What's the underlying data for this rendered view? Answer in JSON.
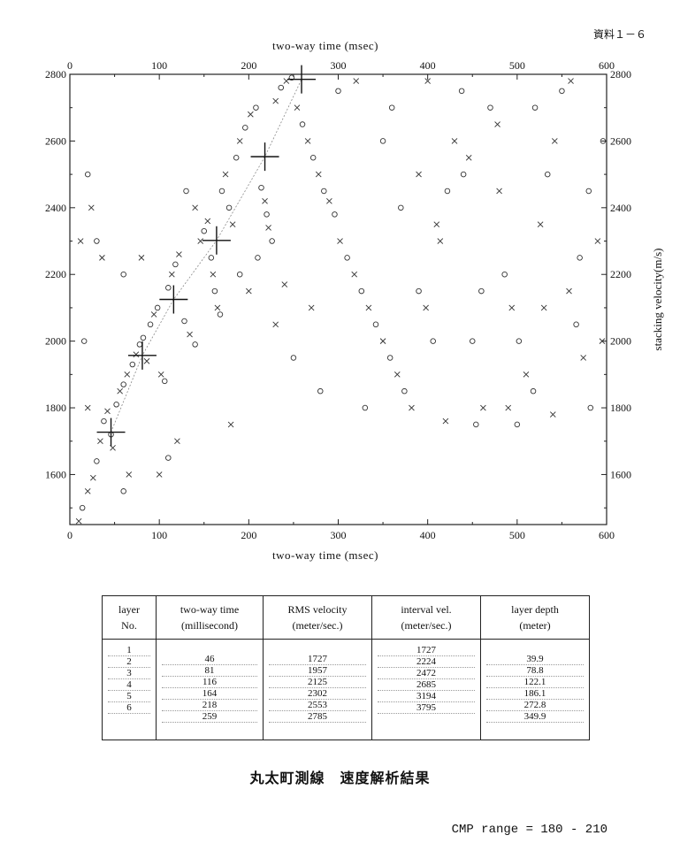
{
  "doc_label": "資料１－６",
  "caption": "丸太町測線　速度解析結果",
  "cmp_range": "CMP range = 180 - 210",
  "chart_data": {
    "type": "scatter",
    "xlabel_top": "two-way time (msec)",
    "xlabel_bottom": "two-way time (msec)",
    "ylabel": "stacking velocity(m/s)",
    "xlim": [
      0,
      600
    ],
    "ylim": [
      1450,
      2800
    ],
    "x_ticks": [
      0,
      100,
      200,
      300,
      400,
      500,
      600
    ],
    "y_ticks": [
      1600,
      1800,
      2000,
      2200,
      2400,
      2600,
      2800
    ],
    "picks": [
      {
        "x": 46,
        "y": 1727
      },
      {
        "x": 81,
        "y": 1957
      },
      {
        "x": 116,
        "y": 2125
      },
      {
        "x": 164,
        "y": 2302
      },
      {
        "x": 218,
        "y": 2553
      },
      {
        "x": 259,
        "y": 2785
      }
    ],
    "semblance_points": [
      {
        "x": 10,
        "y": 1460,
        "m": "x"
      },
      {
        "x": 14,
        "y": 1500,
        "m": "o"
      },
      {
        "x": 20,
        "y": 1550,
        "m": "x"
      },
      {
        "x": 26,
        "y": 1590,
        "m": "x"
      },
      {
        "x": 30,
        "y": 1640,
        "m": "o"
      },
      {
        "x": 34,
        "y": 1700,
        "m": "x"
      },
      {
        "x": 38,
        "y": 1760,
        "m": "o"
      },
      {
        "x": 42,
        "y": 1790,
        "m": "x"
      },
      {
        "x": 46,
        "y": 1720,
        "m": "o"
      },
      {
        "x": 48,
        "y": 1680,
        "m": "x"
      },
      {
        "x": 52,
        "y": 1810,
        "m": "o"
      },
      {
        "x": 56,
        "y": 1850,
        "m": "x"
      },
      {
        "x": 60,
        "y": 1870,
        "m": "o"
      },
      {
        "x": 64,
        "y": 1900,
        "m": "x"
      },
      {
        "x": 70,
        "y": 1930,
        "m": "o"
      },
      {
        "x": 74,
        "y": 1960,
        "m": "x"
      },
      {
        "x": 78,
        "y": 1990,
        "m": "o"
      },
      {
        "x": 82,
        "y": 2010,
        "m": "o"
      },
      {
        "x": 86,
        "y": 1940,
        "m": "x"
      },
      {
        "x": 90,
        "y": 2050,
        "m": "o"
      },
      {
        "x": 94,
        "y": 2080,
        "m": "x"
      },
      {
        "x": 98,
        "y": 2100,
        "m": "o"
      },
      {
        "x": 102,
        "y": 1900,
        "m": "x"
      },
      {
        "x": 106,
        "y": 1880,
        "m": "o"
      },
      {
        "x": 110,
        "y": 2160,
        "m": "o"
      },
      {
        "x": 114,
        "y": 2200,
        "m": "x"
      },
      {
        "x": 118,
        "y": 2230,
        "m": "o"
      },
      {
        "x": 122,
        "y": 2260,
        "m": "x"
      },
      {
        "x": 128,
        "y": 2060,
        "m": "o"
      },
      {
        "x": 134,
        "y": 2020,
        "m": "x"
      },
      {
        "x": 140,
        "y": 1990,
        "m": "o"
      },
      {
        "x": 146,
        "y": 2300,
        "m": "x"
      },
      {
        "x": 150,
        "y": 2330,
        "m": "o"
      },
      {
        "x": 154,
        "y": 2360,
        "m": "x"
      },
      {
        "x": 158,
        "y": 2250,
        "m": "o"
      },
      {
        "x": 160,
        "y": 2200,
        "m": "x"
      },
      {
        "x": 162,
        "y": 2150,
        "m": "o"
      },
      {
        "x": 165,
        "y": 2100,
        "m": "x"
      },
      {
        "x": 168,
        "y": 2080,
        "m": "o"
      },
      {
        "x": 170,
        "y": 2450,
        "m": "o"
      },
      {
        "x": 174,
        "y": 2500,
        "m": "x"
      },
      {
        "x": 178,
        "y": 2400,
        "m": "o"
      },
      {
        "x": 182,
        "y": 2350,
        "m": "x"
      },
      {
        "x": 186,
        "y": 2550,
        "m": "o"
      },
      {
        "x": 190,
        "y": 2600,
        "m": "x"
      },
      {
        "x": 196,
        "y": 2640,
        "m": "o"
      },
      {
        "x": 202,
        "y": 2680,
        "m": "x"
      },
      {
        "x": 208,
        "y": 2700,
        "m": "o"
      },
      {
        "x": 214,
        "y": 2460,
        "m": "o"
      },
      {
        "x": 218,
        "y": 2420,
        "m": "x"
      },
      {
        "x": 220,
        "y": 2380,
        "m": "o"
      },
      {
        "x": 222,
        "y": 2340,
        "m": "x"
      },
      {
        "x": 226,
        "y": 2300,
        "m": "o"
      },
      {
        "x": 230,
        "y": 2720,
        "m": "x"
      },
      {
        "x": 236,
        "y": 2760,
        "m": "o"
      },
      {
        "x": 242,
        "y": 2780,
        "m": "x"
      },
      {
        "x": 248,
        "y": 2790,
        "m": "o"
      },
      {
        "x": 254,
        "y": 2700,
        "m": "x"
      },
      {
        "x": 260,
        "y": 2650,
        "m": "o"
      },
      {
        "x": 266,
        "y": 2600,
        "m": "x"
      },
      {
        "x": 272,
        "y": 2550,
        "m": "o"
      },
      {
        "x": 278,
        "y": 2500,
        "m": "x"
      },
      {
        "x": 284,
        "y": 2450,
        "m": "o"
      },
      {
        "x": 290,
        "y": 2420,
        "m": "x"
      },
      {
        "x": 296,
        "y": 2380,
        "m": "o"
      },
      {
        "x": 302,
        "y": 2300,
        "m": "x"
      },
      {
        "x": 310,
        "y": 2250,
        "m": "o"
      },
      {
        "x": 318,
        "y": 2200,
        "m": "x"
      },
      {
        "x": 326,
        "y": 2150,
        "m": "o"
      },
      {
        "x": 334,
        "y": 2100,
        "m": "x"
      },
      {
        "x": 342,
        "y": 2050,
        "m": "o"
      },
      {
        "x": 350,
        "y": 2000,
        "m": "x"
      },
      {
        "x": 358,
        "y": 1950,
        "m": "o"
      },
      {
        "x": 366,
        "y": 1900,
        "m": "x"
      },
      {
        "x": 374,
        "y": 1850,
        "m": "o"
      },
      {
        "x": 382,
        "y": 1800,
        "m": "x"
      },
      {
        "x": 390,
        "y": 2150,
        "m": "o"
      },
      {
        "x": 398,
        "y": 2100,
        "m": "x"
      },
      {
        "x": 406,
        "y": 2000,
        "m": "o"
      },
      {
        "x": 414,
        "y": 2300,
        "m": "x"
      },
      {
        "x": 422,
        "y": 2450,
        "m": "o"
      },
      {
        "x": 430,
        "y": 2600,
        "m": "x"
      },
      {
        "x": 438,
        "y": 2750,
        "m": "o"
      },
      {
        "x": 446,
        "y": 2550,
        "m": "x"
      },
      {
        "x": 454,
        "y": 1750,
        "m": "o"
      },
      {
        "x": 462,
        "y": 1800,
        "m": "x"
      },
      {
        "x": 470,
        "y": 2700,
        "m": "o"
      },
      {
        "x": 478,
        "y": 2650,
        "m": "x"
      },
      {
        "x": 486,
        "y": 2200,
        "m": "o"
      },
      {
        "x": 494,
        "y": 2100,
        "m": "x"
      },
      {
        "x": 502,
        "y": 2000,
        "m": "o"
      },
      {
        "x": 510,
        "y": 1900,
        "m": "x"
      },
      {
        "x": 518,
        "y": 1850,
        "m": "o"
      },
      {
        "x": 526,
        "y": 2350,
        "m": "x"
      },
      {
        "x": 534,
        "y": 2500,
        "m": "o"
      },
      {
        "x": 542,
        "y": 2600,
        "m": "x"
      },
      {
        "x": 550,
        "y": 2750,
        "m": "o"
      },
      {
        "x": 558,
        "y": 2150,
        "m": "x"
      },
      {
        "x": 566,
        "y": 2050,
        "m": "o"
      },
      {
        "x": 574,
        "y": 1950,
        "m": "x"
      },
      {
        "x": 582,
        "y": 1800,
        "m": "o"
      },
      {
        "x": 590,
        "y": 2300,
        "m": "x"
      },
      {
        "x": 596,
        "y": 2600,
        "m": "o"
      },
      {
        "x": 20,
        "y": 2500,
        "m": "o"
      },
      {
        "x": 24,
        "y": 2400,
        "m": "x"
      },
      {
        "x": 30,
        "y": 2300,
        "m": "o"
      },
      {
        "x": 36,
        "y": 2250,
        "m": "x"
      },
      {
        "x": 60,
        "y": 1550,
        "m": "o"
      },
      {
        "x": 66,
        "y": 1600,
        "m": "x"
      },
      {
        "x": 100,
        "y": 1600,
        "m": "x"
      },
      {
        "x": 110,
        "y": 1650,
        "m": "o"
      },
      {
        "x": 120,
        "y": 1700,
        "m": "x"
      },
      {
        "x": 180,
        "y": 1750,
        "m": "x"
      },
      {
        "x": 300,
        "y": 2750,
        "m": "o"
      },
      {
        "x": 320,
        "y": 2780,
        "m": "x"
      },
      {
        "x": 360,
        "y": 2700,
        "m": "o"
      },
      {
        "x": 400,
        "y": 2780,
        "m": "x"
      },
      {
        "x": 440,
        "y": 2500,
        "m": "o"
      },
      {
        "x": 480,
        "y": 2450,
        "m": "x"
      },
      {
        "x": 520,
        "y": 2700,
        "m": "o"
      },
      {
        "x": 560,
        "y": 2780,
        "m": "x"
      },
      {
        "x": 330,
        "y": 1800,
        "m": "o"
      },
      {
        "x": 420,
        "y": 1760,
        "m": "x"
      },
      {
        "x": 500,
        "y": 1750,
        "m": "o"
      },
      {
        "x": 540,
        "y": 1780,
        "m": "x"
      },
      {
        "x": 370,
        "y": 2400,
        "m": "o"
      },
      {
        "x": 410,
        "y": 2350,
        "m": "x"
      },
      {
        "x": 460,
        "y": 2150,
        "m": "o"
      },
      {
        "x": 530,
        "y": 2100,
        "m": "x"
      },
      {
        "x": 580,
        "y": 2450,
        "m": "o"
      },
      {
        "x": 230,
        "y": 2050,
        "m": "x"
      },
      {
        "x": 250,
        "y": 1950,
        "m": "o"
      },
      {
        "x": 270,
        "y": 2100,
        "m": "x"
      },
      {
        "x": 280,
        "y": 1850,
        "m": "o"
      },
      {
        "x": 60,
        "y": 2200,
        "m": "o"
      },
      {
        "x": 80,
        "y": 2250,
        "m": "x"
      },
      {
        "x": 130,
        "y": 2450,
        "m": "o"
      },
      {
        "x": 140,
        "y": 2400,
        "m": "x"
      },
      {
        "x": 12,
        "y": 2300,
        "m": "x"
      },
      {
        "x": 16,
        "y": 2000,
        "m": "o"
      },
      {
        "x": 20,
        "y": 1800,
        "m": "x"
      },
      {
        "x": 190,
        "y": 2200,
        "m": "o"
      },
      {
        "x": 200,
        "y": 2150,
        "m": "x"
      },
      {
        "x": 210,
        "y": 2250,
        "m": "o"
      },
      {
        "x": 240,
        "y": 2170,
        "m": "x"
      },
      {
        "x": 350,
        "y": 2600,
        "m": "o"
      },
      {
        "x": 390,
        "y": 2500,
        "m": "x"
      },
      {
        "x": 450,
        "y": 2000,
        "m": "o"
      },
      {
        "x": 490,
        "y": 1800,
        "m": "x"
      },
      {
        "x": 570,
        "y": 2250,
        "m": "o"
      },
      {
        "x": 595,
        "y": 2000,
        "m": "x"
      }
    ]
  },
  "table": {
    "headers": [
      [
        "layer",
        "No."
      ],
      [
        "two-way time",
        "(millisecond)"
      ],
      [
        "RMS velocity",
        "(meter/sec.)"
      ],
      [
        "interval vel.",
        "(meter/sec.)"
      ],
      [
        "layer depth",
        "(meter)"
      ]
    ],
    "layer_no": [
      "1",
      "2",
      "3",
      "4",
      "5",
      "6"
    ],
    "two_way_time": [
      "46",
      "81",
      "116",
      "164",
      "218",
      "259"
    ],
    "rms_velocity": [
      "1727",
      "1957",
      "2125",
      "2302",
      "2553",
      "2785"
    ],
    "interval_vel": [
      "1727",
      "2224",
      "2472",
      "2685",
      "3194",
      "3795"
    ],
    "layer_depth": [
      "39.9",
      "78.8",
      "122.1",
      "186.1",
      "272.8",
      "349.9"
    ]
  }
}
